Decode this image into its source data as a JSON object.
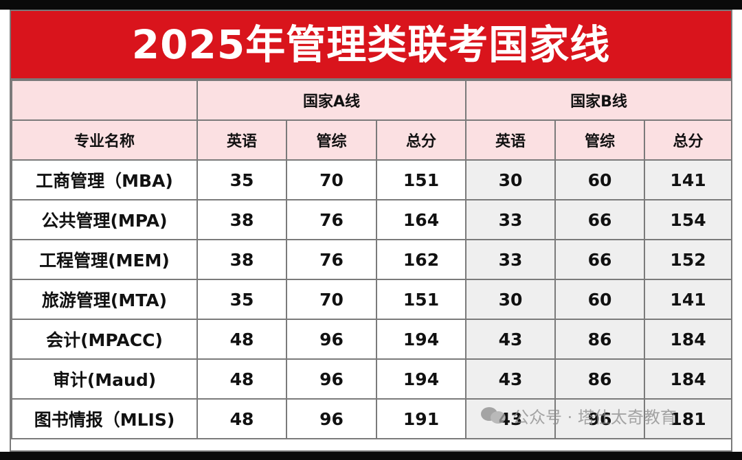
{
  "title": "2025年管理类联考国家线",
  "headers": {
    "name_col": "专业名称",
    "group_a": "国家A线",
    "group_b": "国家B线",
    "english": "英语",
    "comprehensive": "管综",
    "total": "总分"
  },
  "rows": [
    {
      "name": "工商管理（MBA)",
      "a_english": "35",
      "a_comp": "70",
      "a_total": "151",
      "b_english": "30",
      "b_comp": "60",
      "b_total": "141"
    },
    {
      "name": "公共管理(MPA)",
      "a_english": "38",
      "a_comp": "76",
      "a_total": "164",
      "b_english": "33",
      "b_comp": "66",
      "b_total": "154"
    },
    {
      "name": "工程管理(MEM)",
      "a_english": "38",
      "a_comp": "76",
      "a_total": "162",
      "b_english": "33",
      "b_comp": "66",
      "b_total": "152"
    },
    {
      "name": "旅游管理(MTA)",
      "a_english": "35",
      "a_comp": "70",
      "a_total": "151",
      "b_english": "30",
      "b_comp": "60",
      "b_total": "141"
    },
    {
      "name": "会计(MPACC)",
      "a_english": "48",
      "a_comp": "96",
      "a_total": "194",
      "b_english": "43",
      "b_comp": "86",
      "b_total": "184"
    },
    {
      "name": "审计(Maud)",
      "a_english": "48",
      "a_comp": "96",
      "a_total": "194",
      "b_english": "43",
      "b_comp": "86",
      "b_total": "184"
    },
    {
      "name": "图书情报（MLIS)",
      "a_english": "48",
      "a_comp": "96",
      "a_total": "191",
      "b_english": "43",
      "b_comp": "96",
      "b_total": "181"
    }
  ],
  "watermark": {
    "icon": "wechat-icon",
    "text": "公众号 · 塔仕太奇教育"
  },
  "colors": {
    "title_bg": "#d9141c",
    "header_bg": "#fbe0e2",
    "b_zone_bg": "#efefef",
    "total_text": "#d4181f"
  }
}
